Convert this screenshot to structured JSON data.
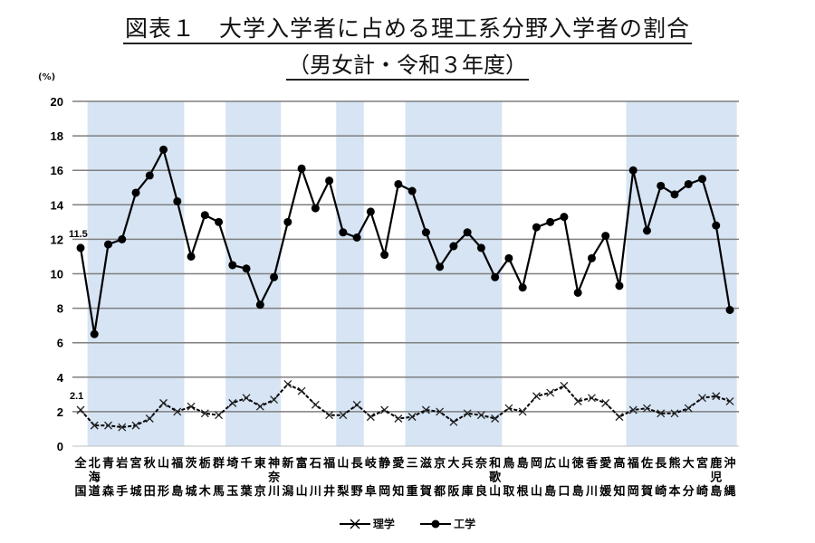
{
  "title": {
    "line1": "図表１　大学入学者に占める理工系分野入学者の割合",
    "line2": "（男女計・令和３年度）"
  },
  "axis": {
    "unit_label": "(%)"
  },
  "legend": {
    "science_label": "理学",
    "engineering_label": "工学"
  },
  "annotations": {
    "science_first": "2.1",
    "engineering_first": "11.5"
  },
  "colors": {
    "band": "#d6e4f4",
    "line": "#000000",
    "grid": "#7f7f7f"
  },
  "chart_data": {
    "type": "line",
    "title": "図表１　大学入学者に占める理工系分野入学者の割合（男女計・令和３年度）",
    "xlabel": "",
    "ylabel": "(%)",
    "ylim": [
      0,
      20
    ],
    "yticks": [
      0,
      2,
      4,
      6,
      8,
      10,
      12,
      14,
      16,
      18,
      20
    ],
    "grid": true,
    "legend_position": "bottom",
    "categories": [
      "全国",
      "北海道",
      "青森",
      "岩手",
      "宮城",
      "秋田",
      "山形",
      "福島",
      "茨城",
      "栃木",
      "群馬",
      "埼玉",
      "千葉",
      "東京",
      "神奈川",
      "新潟",
      "富山",
      "石川",
      "福井",
      "山梨",
      "長野",
      "岐阜",
      "静岡",
      "愛知",
      "三重",
      "滋賀",
      "京都",
      "大阪",
      "兵庫",
      "奈良",
      "和歌山",
      "鳥取",
      "島根",
      "岡山",
      "広島",
      "山口",
      "徳島",
      "香川",
      "愛媛",
      "高知",
      "福岡",
      "佐賀",
      "長崎",
      "熊本",
      "大分",
      "宮崎",
      "鹿児島",
      "沖縄"
    ],
    "series": [
      {
        "name": "理学",
        "marker": "x",
        "values": [
          2.1,
          1.2,
          1.2,
          1.1,
          1.2,
          1.6,
          2.5,
          2.0,
          2.3,
          1.9,
          1.8,
          2.5,
          2.8,
          2.3,
          2.7,
          3.6,
          3.2,
          2.4,
          1.8,
          1.8,
          2.4,
          1.7,
          2.1,
          1.6,
          1.7,
          2.1,
          2.0,
          1.4,
          1.9,
          1.8,
          1.6,
          2.2,
          2.0,
          2.9,
          3.1,
          3.5,
          2.6,
          2.8,
          2.5,
          1.7,
          2.1,
          2.2,
          1.9,
          1.9,
          2.2,
          2.8,
          2.9,
          2.6
        ]
      },
      {
        "name": "工学",
        "marker": "circle",
        "values": [
          11.5,
          6.5,
          11.7,
          12.0,
          14.7,
          15.7,
          17.2,
          14.2,
          11.0,
          13.4,
          13.0,
          10.5,
          10.3,
          8.2,
          9.8,
          13.0,
          16.1,
          13.8,
          15.4,
          12.4,
          12.1,
          13.6,
          11.1,
          15.2,
          14.8,
          12.4,
          10.4,
          11.6,
          12.4,
          11.5,
          9.8,
          10.9,
          9.2,
          12.7,
          13.0,
          13.3,
          8.9,
          10.9,
          12.2,
          9.3,
          16.0,
          12.5,
          15.1,
          14.6,
          15.2,
          15.5,
          12.8,
          7.9
        ]
      }
    ],
    "shaded_regions": [
      {
        "from": "北海道",
        "to": "福島"
      },
      {
        "from": "埼玉",
        "to": "神奈川"
      },
      {
        "from": "山梨",
        "to": "長野"
      },
      {
        "from": "三重",
        "to": "和歌山"
      },
      {
        "from": "福岡",
        "to": "沖縄"
      }
    ]
  }
}
